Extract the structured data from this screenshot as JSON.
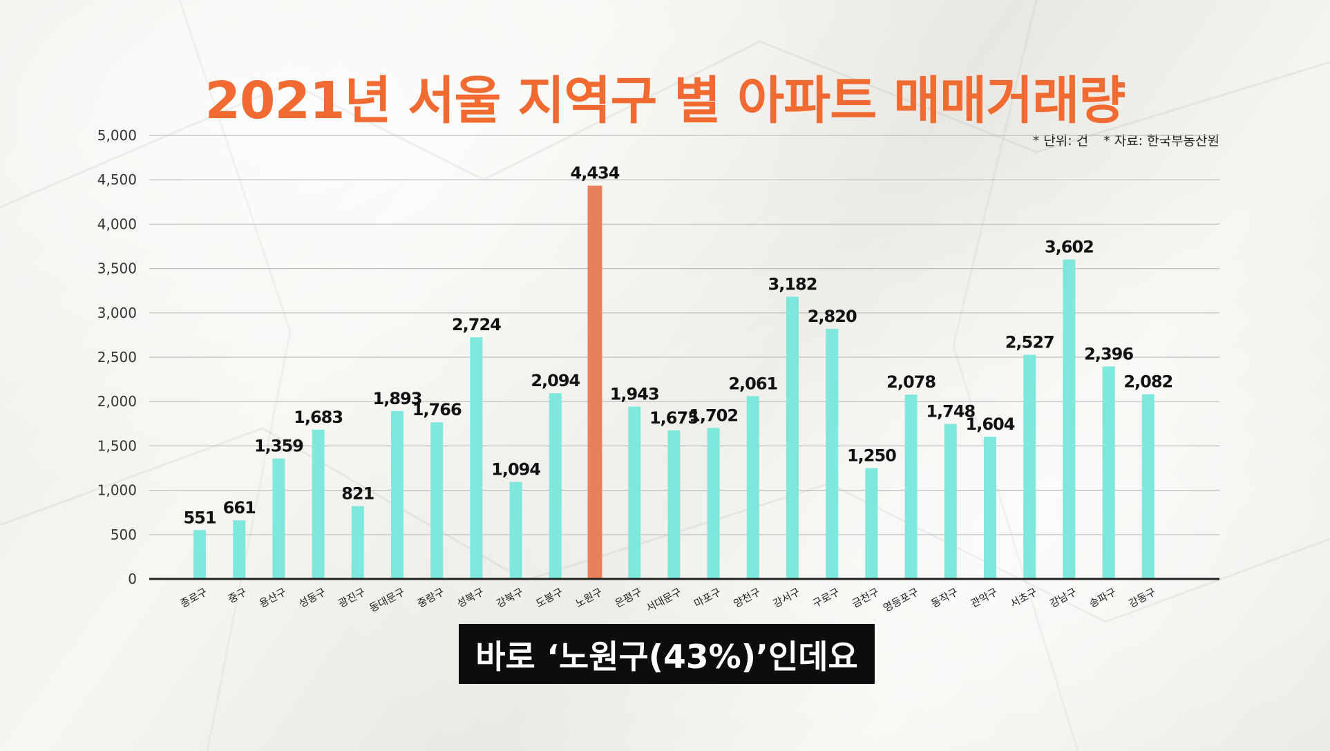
{
  "title": "2021년 서울 지역구 별 아파트 매매거래량",
  "unit_note": "* 단위: 건",
  "source_note": "* 자료: 한국부동산원",
  "subtitle": "바로 ‘노원구(43%)’인데요",
  "colors": {
    "title": "#f06a31",
    "bar": "#7ee8dd",
    "highlight_bar": "#e8805c",
    "gridline": "#bdbdbd",
    "axis": "#222222",
    "subtitle_bg": "#0d0d0d"
  },
  "chart_data": {
    "type": "bar",
    "title": "2021년 서울 지역구 별 아파트 매매거래량",
    "xlabel": "",
    "ylabel": "",
    "ylim": [
      0,
      5000
    ],
    "yticks": [
      0,
      500,
      1000,
      1500,
      2000,
      2500,
      3000,
      3500,
      4000,
      4500,
      5000
    ],
    "ytick_labels": [
      "0",
      "500",
      "1,000",
      "1,500",
      "2,000",
      "2,500",
      "3,000",
      "3,500",
      "4,000",
      "4,500",
      "5,000"
    ],
    "grid": true,
    "highlight_category": "노원구",
    "categories": [
      "종로구",
      "중구",
      "용산구",
      "성동구",
      "광진구",
      "동대문구",
      "중랑구",
      "성북구",
      "강북구",
      "도봉구",
      "노원구",
      "은평구",
      "서대문구",
      "마포구",
      "양천구",
      "강서구",
      "구로구",
      "금천구",
      "영등포구",
      "동작구",
      "관악구",
      "서초구",
      "강남구",
      "송파구",
      "강동구"
    ],
    "values": [
      551,
      661,
      1359,
      1683,
      821,
      1893,
      1766,
      2724,
      1094,
      2094,
      4434,
      1943,
      1675,
      1702,
      2061,
      3182,
      2820,
      1250,
      2078,
      1748,
      1604,
      2527,
      3602,
      2396,
      2082
    ],
    "value_labels": [
      "551",
      "661",
      "1,359",
      "1,683",
      "821",
      "1,893",
      "1,766",
      "2,724",
      "1,094",
      "2,094",
      "4,434",
      "1,943",
      "1,675",
      "1,702",
      "2,061",
      "3,182",
      "2,820",
      "1,250",
      "2,078",
      "1,748",
      "1,604",
      "2,527",
      "3,602",
      "2,396",
      "2,082"
    ]
  }
}
